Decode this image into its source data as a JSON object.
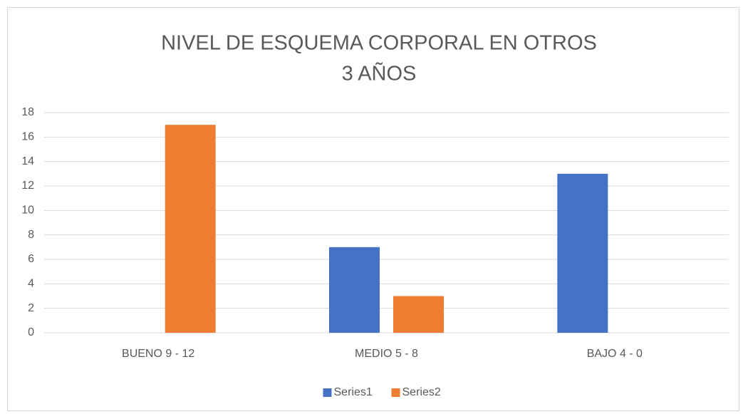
{
  "chart_data": {
    "type": "bar",
    "title": [
      "NIVEL DE ESQUEMA CORPORAL EN OTROS",
      "3 AÑOS"
    ],
    "categories": [
      "BUENO 9 - 12",
      "MEDIO 5 - 8",
      "BAJO 4 - 0"
    ],
    "series": [
      {
        "name": "Series1",
        "color": "#4472c4",
        "values": [
          0,
          7,
          13
        ]
      },
      {
        "name": "Series2",
        "color": "#ed7d31",
        "values": [
          17,
          3,
          0
        ]
      }
    ],
    "ylim": [
      0,
      18
    ],
    "yticks": [
      0,
      2,
      4,
      6,
      8,
      10,
      12,
      14,
      16,
      18
    ],
    "grid": true,
    "legend": "bottom"
  }
}
